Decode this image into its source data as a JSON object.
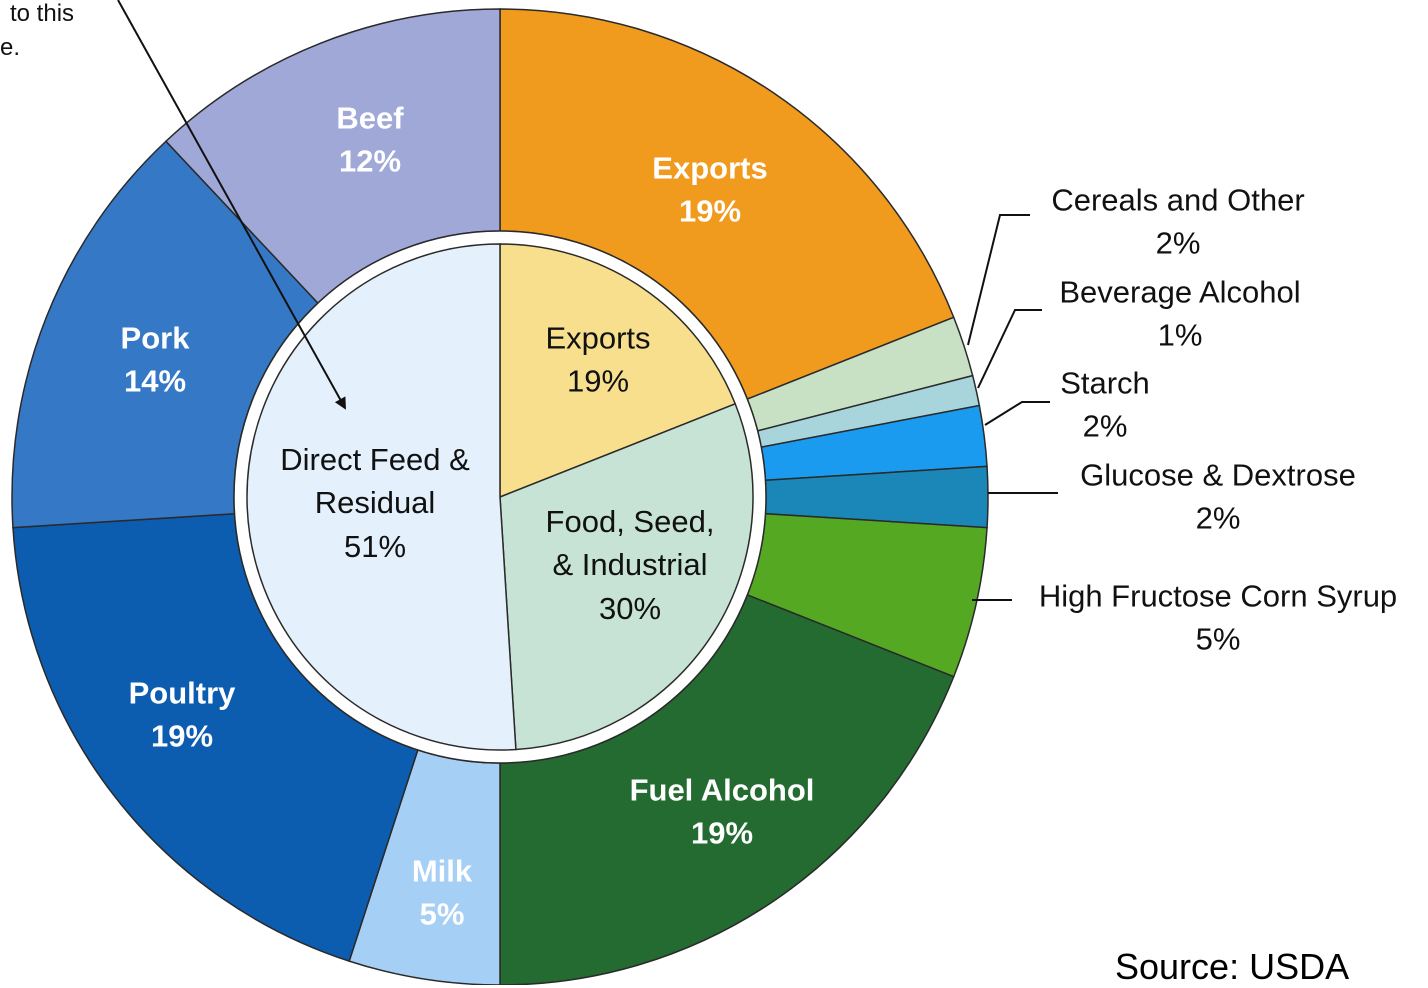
{
  "chart_data": {
    "type": "pie",
    "inner": {
      "categories": [
        "Exports",
        "Food, Seed, & Industrial",
        "Direct Feed & Residual"
      ],
      "values": [
        19,
        30,
        51
      ],
      "value_labels": [
        "19%",
        "30%",
        "51%"
      ],
      "colors": [
        "#f7df8e",
        "#c7e3d5",
        "#e4f0fc"
      ]
    },
    "outer": {
      "categories": [
        "Exports",
        "Cereals and Other",
        "Beverage Alcohol",
        "Starch",
        "Glucose & Dextrose",
        "High Fructose Corn Syrup",
        "Fuel Alcohol",
        "Milk",
        "Poultry",
        "Pork",
        "Beef"
      ],
      "values": [
        19,
        2,
        1,
        2,
        2,
        5,
        19,
        5,
        19,
        14,
        12
      ],
      "value_labels": [
        "19%",
        "2%",
        "1%",
        "2%",
        "2%",
        "5%",
        "19%",
        "5%",
        "19%",
        "14%",
        "12%"
      ],
      "colors": [
        "#f09a1e",
        "#c8e0c4",
        "#a8d4dc",
        "#1a9bef",
        "#1a87b8",
        "#55a822",
        "#236b30",
        "#a6cff5",
        "#0c5cb0",
        "#3578c6",
        "#a0a8d8"
      ]
    },
    "annotations": [
      "to this",
      "e."
    ],
    "source": "Source: USDA"
  }
}
